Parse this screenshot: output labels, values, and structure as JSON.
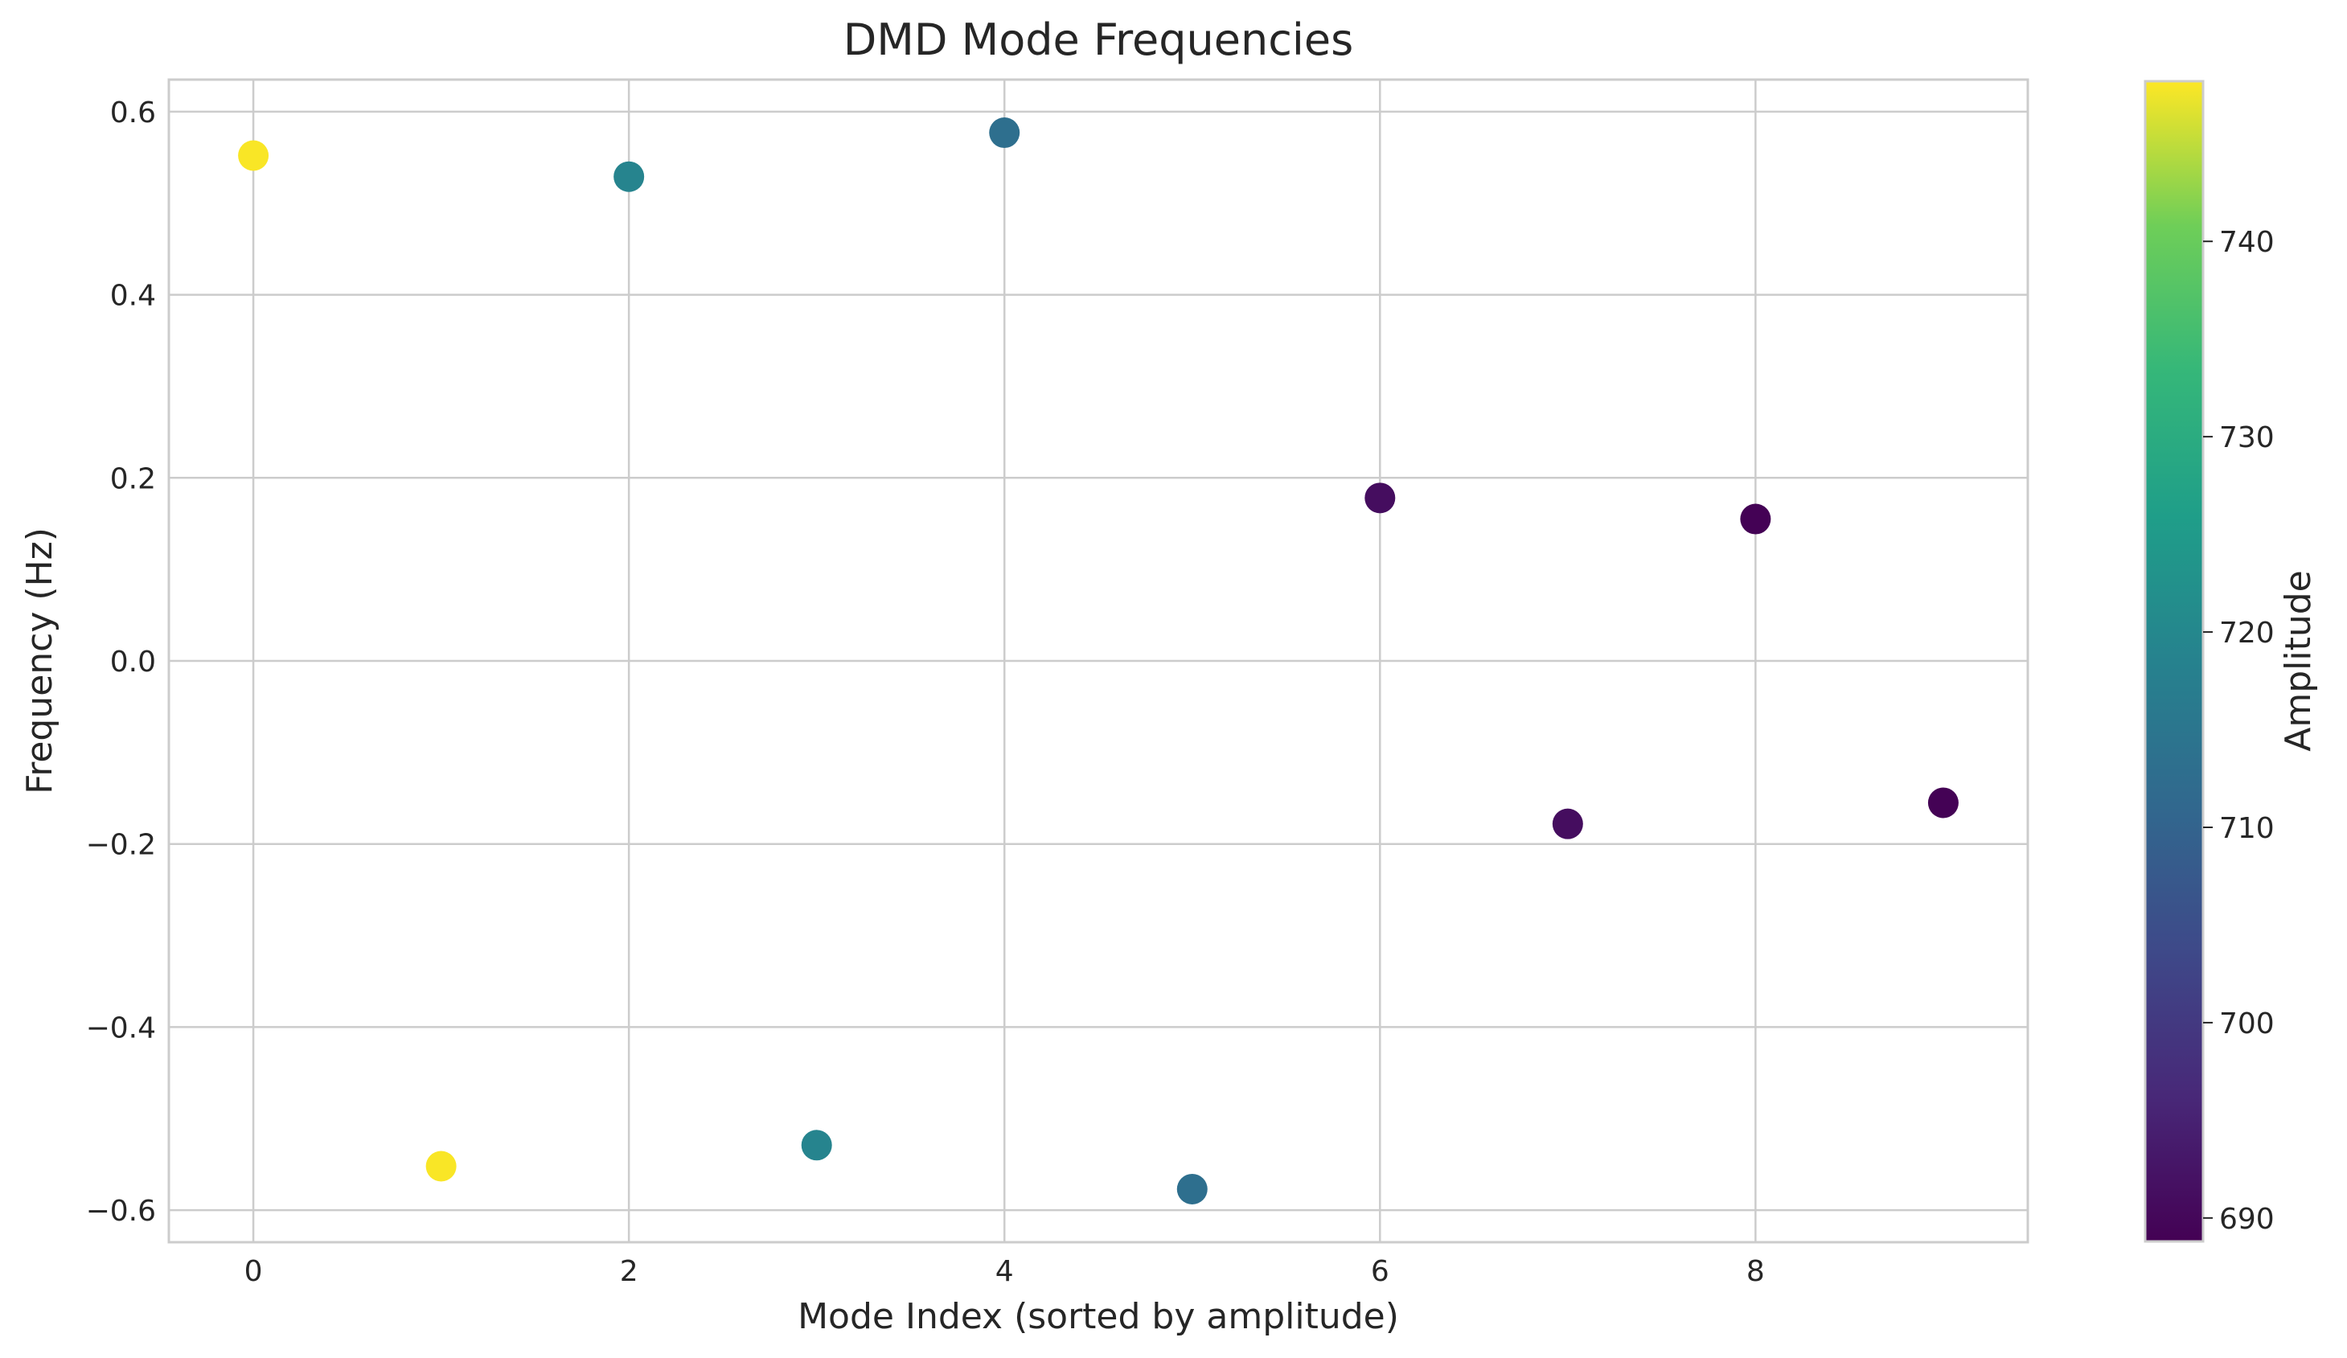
{
  "chart_data": {
    "type": "scatter",
    "title": "DMD Mode Frequencies",
    "xlabel": "Mode Index (sorted by amplitude)",
    "ylabel": "Frequency (Hz)",
    "xlim": [
      -0.45,
      9.45
    ],
    "ylim": [
      -0.635,
      0.635
    ],
    "xticks": [
      0,
      2,
      4,
      6,
      8
    ],
    "xtick_labels": [
      "0",
      "2",
      "4",
      "6",
      "8"
    ],
    "yticks": [
      -0.6,
      -0.4,
      -0.2,
      0.0,
      0.2,
      0.4,
      0.6
    ],
    "ytick_labels": [
      "−0.6",
      "−0.4",
      "−0.2",
      "0.0",
      "0.2",
      "0.4",
      "0.6"
    ],
    "grid": true,
    "points": [
      {
        "x": 0,
        "y": 0.552,
        "amplitude": 748
      },
      {
        "x": 1,
        "y": -0.552,
        "amplitude": 748
      },
      {
        "x": 2,
        "y": 0.529,
        "amplitude": 719
      },
      {
        "x": 3,
        "y": -0.529,
        "amplitude": 719
      },
      {
        "x": 4,
        "y": 0.577,
        "amplitude": 713
      },
      {
        "x": 5,
        "y": -0.577,
        "amplitude": 713
      },
      {
        "x": 6,
        "y": 0.178,
        "amplitude": 691
      },
      {
        "x": 7,
        "y": -0.178,
        "amplitude": 691
      },
      {
        "x": 8,
        "y": 0.155,
        "amplitude": 689
      },
      {
        "x": 9,
        "y": -0.155,
        "amplitude": 689
      }
    ],
    "colorbar": {
      "label": "Amplitude",
      "colormap": "viridis",
      "range": [
        688.8,
        748.2
      ],
      "ticks": [
        690,
        700,
        710,
        720,
        730,
        740
      ],
      "tick_labels": [
        "690",
        "700",
        "710",
        "720",
        "730",
        "740"
      ]
    }
  }
}
